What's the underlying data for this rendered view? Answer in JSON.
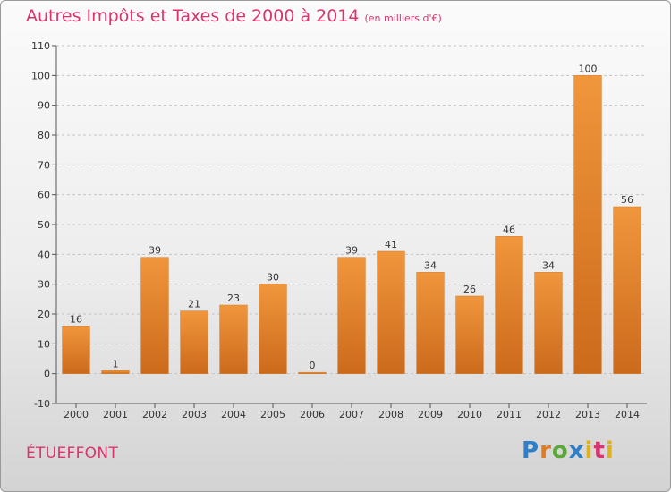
{
  "chart_data": {
    "type": "bar",
    "title": "Autres Impôts et Taxes de 2000 à 2014",
    "subtitle": "(en milliers d'€)",
    "categories": [
      "2000",
      "2001",
      "2002",
      "2003",
      "2004",
      "2005",
      "2006",
      "2007",
      "2008",
      "2009",
      "2010",
      "2011",
      "2012",
      "2013",
      "2014"
    ],
    "values": [
      16,
      1,
      39,
      21,
      23,
      30,
      0,
      39,
      41,
      34,
      26,
      46,
      34,
      100,
      56
    ],
    "ylim": [
      -10,
      110
    ],
    "yticks": [
      -10,
      0,
      10,
      20,
      30,
      40,
      50,
      60,
      70,
      80,
      90,
      100,
      110
    ],
    "grid": "horizontal dashed",
    "bar_color": "#f0963c",
    "bar_color_dark": "#cc6a1c"
  },
  "commune": "ÉTUEFFONT",
  "logo": {
    "p": "P",
    "r": "r",
    "o": "o",
    "x": "x",
    "i": "i",
    "t": "t",
    "i2": "i"
  }
}
